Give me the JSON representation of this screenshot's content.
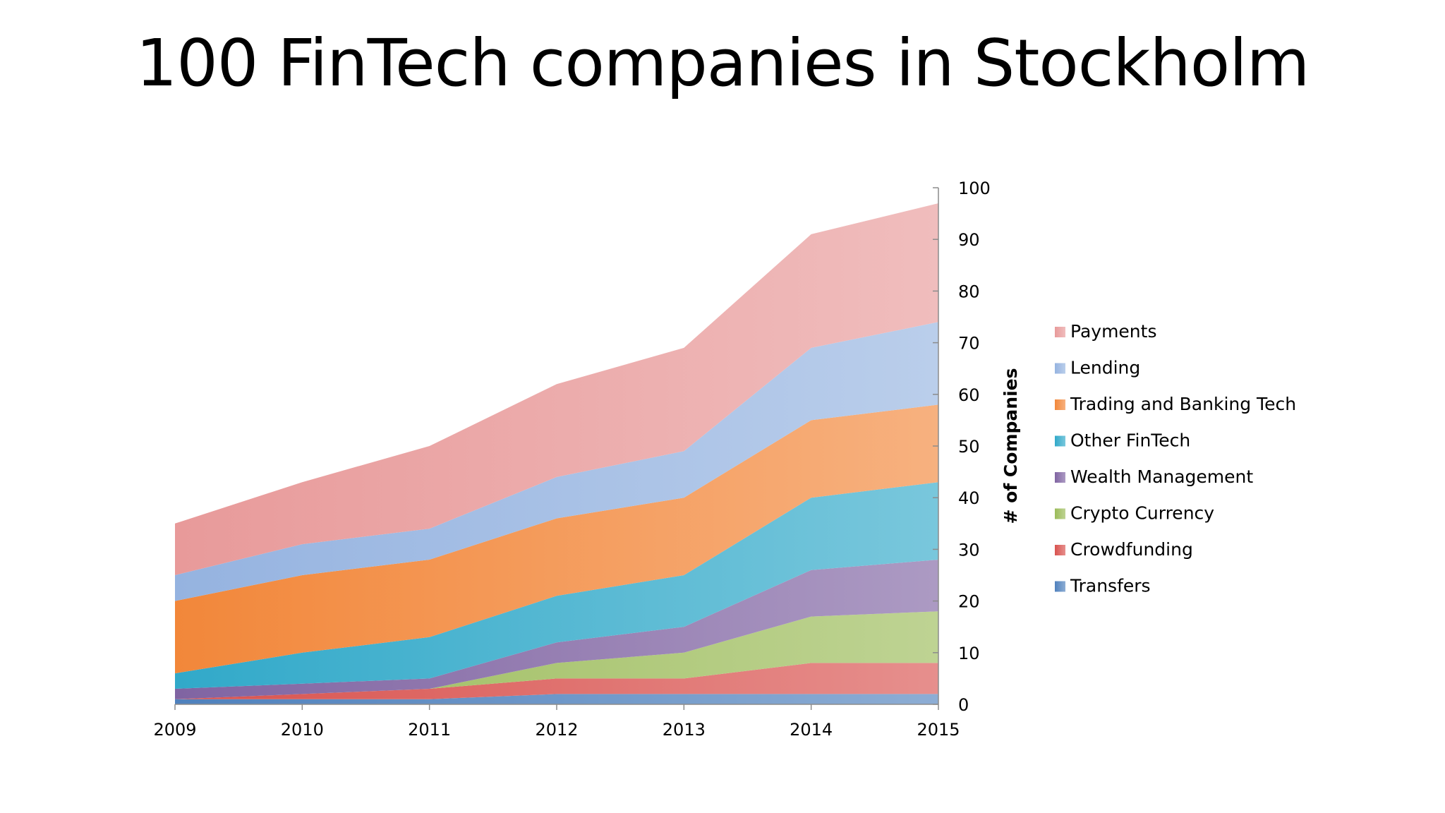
{
  "slide": {
    "title": "100 FinTech companies in Stockholm"
  },
  "chart_data": {
    "type": "area",
    "stacked": true,
    "title": "",
    "xlabel": "",
    "ylabel": "# of Companies",
    "x": [
      "2009",
      "2010",
      "2011",
      "2012",
      "2013",
      "2014",
      "2015"
    ],
    "ylim": [
      0,
      100
    ],
    "yticks": [
      0,
      10,
      20,
      30,
      40,
      50,
      60,
      70,
      80,
      90,
      100
    ],
    "y_axis_side": "right",
    "grid": false,
    "legend_position": "right",
    "series": [
      {
        "name": "Transfers",
        "color": "#4f81bd",
        "values": [
          1,
          1,
          1,
          2,
          2,
          2,
          2
        ]
      },
      {
        "name": "Crowdfunding",
        "color": "#d9534f",
        "values": [
          0,
          1,
          2,
          3,
          3,
          6,
          6
        ]
      },
      {
        "name": "Crypto Currency",
        "color": "#9bbb59",
        "values": [
          0,
          0,
          0,
          3,
          5,
          9,
          10
        ]
      },
      {
        "name": "Wealth Management",
        "color": "#8064a2",
        "values": [
          2,
          2,
          2,
          4,
          5,
          9,
          10
        ]
      },
      {
        "name": "Other FinTech",
        "color": "#31a9c9",
        "values": [
          3,
          6,
          8,
          9,
          10,
          14,
          15
        ]
      },
      {
        "name": "Trading and Banking Tech",
        "color": "#f2873a",
        "values": [
          14,
          15,
          15,
          15,
          15,
          15,
          15
        ]
      },
      {
        "name": "Lending",
        "color": "#95b3e0",
        "values": [
          5,
          6,
          6,
          8,
          9,
          14,
          16
        ]
      },
      {
        "name": "Payments",
        "color": "#e89a9a",
        "values": [
          10,
          12,
          16,
          18,
          20,
          22,
          23
        ]
      }
    ]
  }
}
